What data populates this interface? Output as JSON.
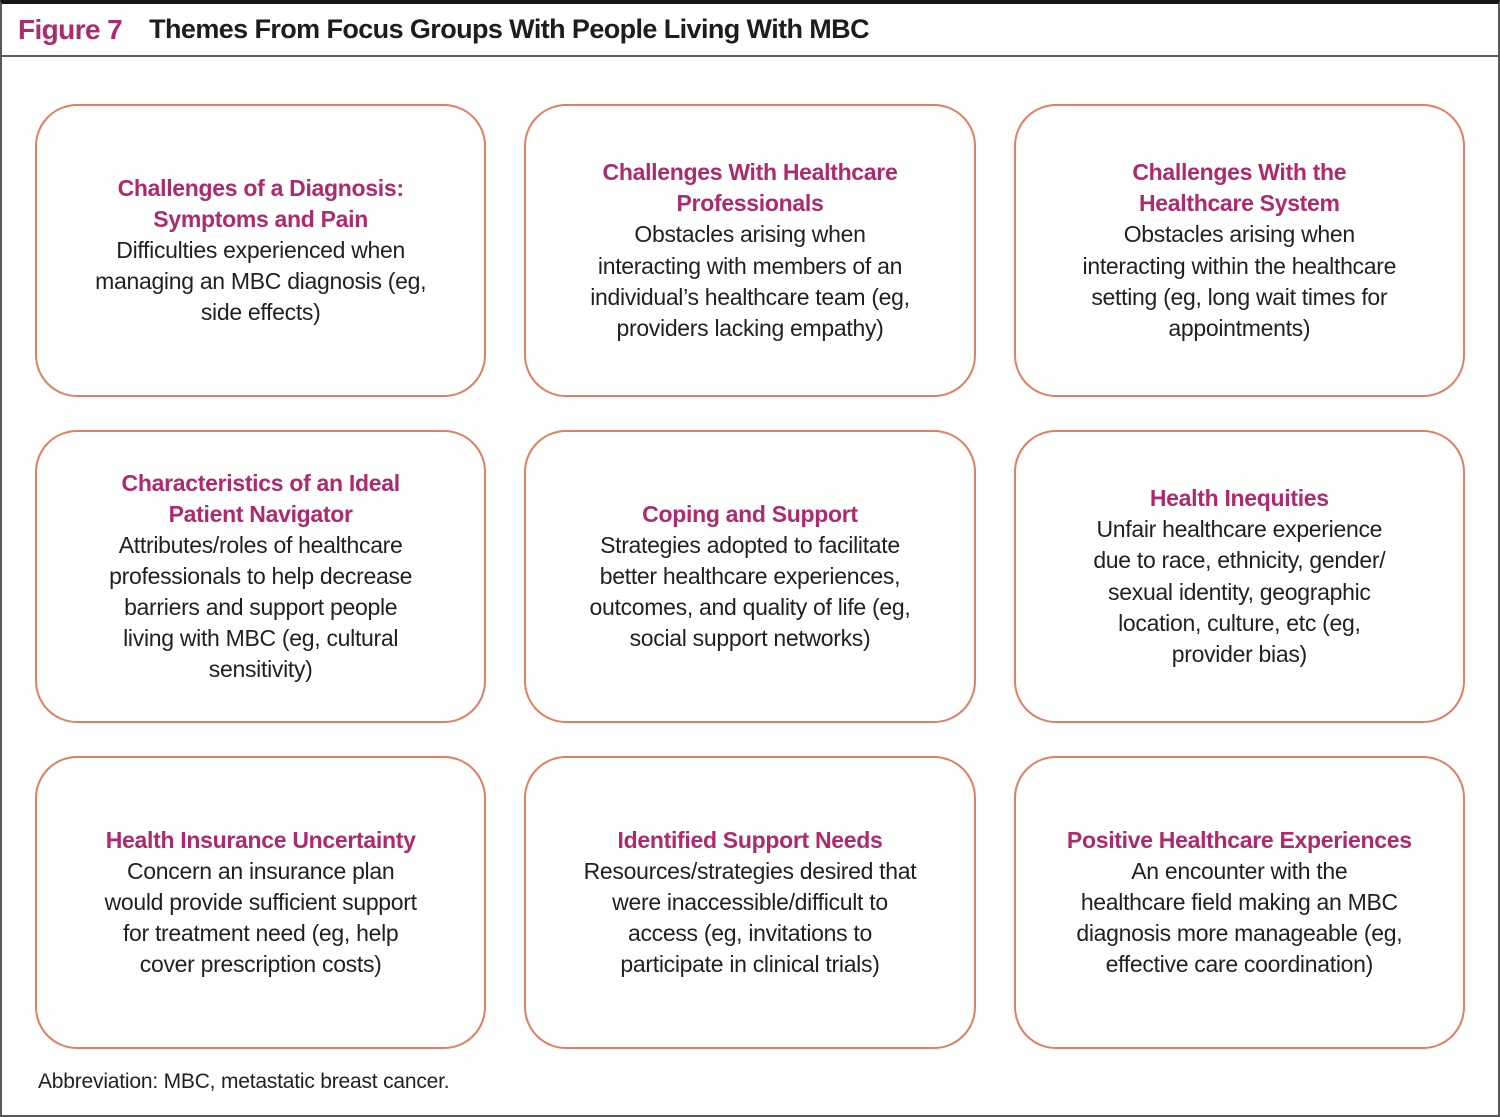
{
  "header": {
    "label": "Figure 7",
    "title": "Themes From Focus Groups With People Living With MBC"
  },
  "boxes": [
    {
      "title": "Challenges of a Diagnosis:\nSymptoms and Pain",
      "body": "Difficulties experienced when\nmanaging an MBC diagnosis (eg,\nside effects)"
    },
    {
      "title": "Challenges With Healthcare\nProfessionals",
      "body": "Obstacles arising when\ninteracting with members of an\nindividual’s healthcare team (eg,\nproviders lacking empathy)"
    },
    {
      "title": "Challenges With the\nHealthcare System",
      "body": "Obstacles arising when\ninteracting within the healthcare\nsetting (eg, long wait times for\nappointments)"
    },
    {
      "title": "Characteristics of an Ideal\nPatient Navigator",
      "body": "Attributes/roles of healthcare\nprofessionals to help decrease\nbarriers and support people\nliving with MBC (eg, cultural\nsensitivity)"
    },
    {
      "title": "Coping and Support",
      "body": "Strategies adopted to facilitate\nbetter healthcare experiences,\noutcomes, and quality of life (eg,\nsocial support networks)"
    },
    {
      "title": "Health Inequities",
      "body": "Unfair healthcare experience\ndue to race, ethnicity, gender/\nsexual identity, geographic\nlocation, culture, etc (eg,\nprovider bias)"
    },
    {
      "title": "Health Insurance Uncertainty",
      "body": "Concern an insurance plan\nwould provide sufficient support\nfor treatment need (eg, help\ncover prescription costs)"
    },
    {
      "title": "Identified Support Needs",
      "body": "Resources/strategies desired that\nwere inaccessible/difficult to\naccess (eg, invitations to\nparticipate in clinical trials)"
    },
    {
      "title": "Positive Healthcare Experiences",
      "body": "An encounter with the\nhealthcare field making an MBC\ndiagnosis more manageable (eg,\neffective care coordination)"
    }
  ],
  "footnote": "Abbreviation: MBC, metastatic breast cancer.",
  "colors": {
    "accent_magenta": "#ae2a6c",
    "box_border_salmon": "#e07f63",
    "frame_border_gray": "#59595b",
    "text_black": "#231f20"
  }
}
